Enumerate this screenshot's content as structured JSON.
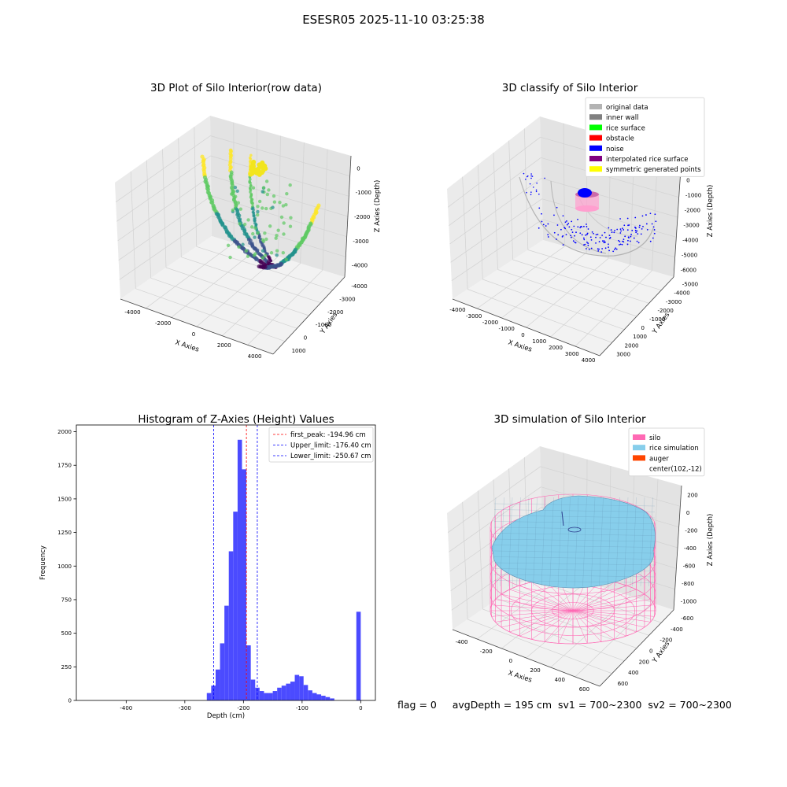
{
  "figure_title": "ESESR05 2025-11-10 03:25:38",
  "footer_text": "flag = 0     avgDepth = 195 cm  sv1 = 700~2300  sv2 = 700~2300",
  "chart_data": [
    {
      "id": "raw",
      "type": "scatter3d",
      "title": "3D Plot of Silo Interior(row data)",
      "xlabel": "X Axies",
      "ylabel": "Y Axies",
      "zlabel": "Z Axies (Depth)",
      "xticks": [
        "-4000",
        "-2000",
        "0",
        "2000",
        "4000"
      ],
      "yticks": [
        "1000",
        "0",
        "-1000",
        "-2000",
        "-3000",
        "-4000"
      ],
      "zticks": [
        "0",
        "-1000",
        "-2000",
        "-3000",
        "-4000"
      ],
      "colormap": [
        "#440154",
        "#3b528b",
        "#21918c",
        "#5ec962",
        "#fde725"
      ]
    },
    {
      "id": "classify",
      "type": "scatter3d",
      "title": "3D classify of Silo Interior",
      "xlabel": "X Axies",
      "ylabel": "Y Axies",
      "zlabel": "Z Axies (Depth)",
      "xticks": [
        "-4000",
        "-3000",
        "-2000",
        "-1000",
        "0",
        "1000",
        "2000",
        "3000",
        "4000"
      ],
      "yticks": [
        "3000",
        "2000",
        "1000",
        "0",
        "-1000",
        "-2000",
        "-3000",
        "-4000",
        "-5000"
      ],
      "zticks": [
        "1000",
        "0",
        "-1000",
        "-2000",
        "-3000",
        "-4000",
        "-5000",
        "-6000"
      ],
      "legend_position": "upper-right",
      "legend": [
        {
          "label": "original data",
          "color": "#b3b3b3"
        },
        {
          "label": "inner wall",
          "color": "#808080"
        },
        {
          "label": "rice surface",
          "color": "#00ff00"
        },
        {
          "label": "obstacle",
          "color": "#ff0000"
        },
        {
          "label": "noise",
          "color": "#0000ff"
        },
        {
          "label": "interpolated rice surface",
          "color": "#800080"
        },
        {
          "label": "symmetric generated points",
          "color": "#ffff00"
        }
      ]
    },
    {
      "id": "hist",
      "type": "bar",
      "title": "Histogram of Z-Axies (Height) Values",
      "xlabel": "Depth (cm)",
      "ylabel": "Frequency",
      "xlim": [
        -485,
        25
      ],
      "ylim": [
        0,
        2050
      ],
      "xticks": [
        -400,
        -300,
        -200,
        -100,
        0
      ],
      "yticks": [
        0,
        250,
        500,
        750,
        1000,
        1250,
        1500,
        1750,
        2000
      ],
      "bar_color": "#4b4bff",
      "bin_width": 7.5,
      "bins": [
        {
          "x0": -262.5,
          "count": 55
        },
        {
          "x0": -255,
          "count": 110
        },
        {
          "x0": -247.5,
          "count": 230
        },
        {
          "x0": -240,
          "count": 425
        },
        {
          "x0": -232.5,
          "count": 705
        },
        {
          "x0": -225,
          "count": 1110
        },
        {
          "x0": -217.5,
          "count": 1405
        },
        {
          "x0": -210,
          "count": 1940
        },
        {
          "x0": -202.5,
          "count": 1720
        },
        {
          "x0": -195,
          "count": 410
        },
        {
          "x0": -187.5,
          "count": 155
        },
        {
          "x0": -180,
          "count": 95
        },
        {
          "x0": -172.5,
          "count": 70
        },
        {
          "x0": -165,
          "count": 55
        },
        {
          "x0": -157.5,
          "count": 55
        },
        {
          "x0": -150,
          "count": 70
        },
        {
          "x0": -142.5,
          "count": 95
        },
        {
          "x0": -135,
          "count": 110
        },
        {
          "x0": -127.5,
          "count": 125
        },
        {
          "x0": -120,
          "count": 140
        },
        {
          "x0": -112.5,
          "count": 190
        },
        {
          "x0": -105,
          "count": 180
        },
        {
          "x0": -97.5,
          "count": 115
        },
        {
          "x0": -90,
          "count": 75
        },
        {
          "x0": -82.5,
          "count": 55
        },
        {
          "x0": -75,
          "count": 45
        },
        {
          "x0": -67.5,
          "count": 35
        },
        {
          "x0": -60,
          "count": 25
        },
        {
          "x0": -52.5,
          "count": 15
        },
        {
          "x0": -7.5,
          "count": 660
        }
      ],
      "vlines": [
        {
          "name": "first_peak: -194.96 cm",
          "value": -194.96,
          "color": "#ff0000"
        },
        {
          "name": "Upper_limit: -176.40 cm",
          "value": -176.4,
          "color": "#0000ff"
        },
        {
          "name": "Lower_limit: -250.67 cm",
          "value": -250.67,
          "color": "#0000ff"
        }
      ],
      "legend_position": "upper-right"
    },
    {
      "id": "sim",
      "type": "surface3d",
      "title": "3D simulation of Silo Interior",
      "xlabel": "X Axies",
      "ylabel": "Y Axies",
      "zlabel": "Z Axies (Depth)",
      "xticks": [
        "-400",
        "-200",
        "0",
        "200",
        "400",
        "600"
      ],
      "yticks": [
        "600",
        "400",
        "200",
        "0",
        "-200",
        "-400",
        "-600"
      ],
      "zticks": [
        "200",
        "0",
        "-200",
        "-400",
        "-600",
        "-800",
        "-1000"
      ],
      "legend_position": "upper-right",
      "legend": [
        {
          "label": "silo",
          "color": "#ff69b4"
        },
        {
          "label": "rice simulation",
          "color": "#87ceeb"
        },
        {
          "label": "auger",
          "color": "#ff4500"
        },
        {
          "label": "center(102,-12)",
          "color": "#ffffff"
        }
      ]
    }
  ]
}
